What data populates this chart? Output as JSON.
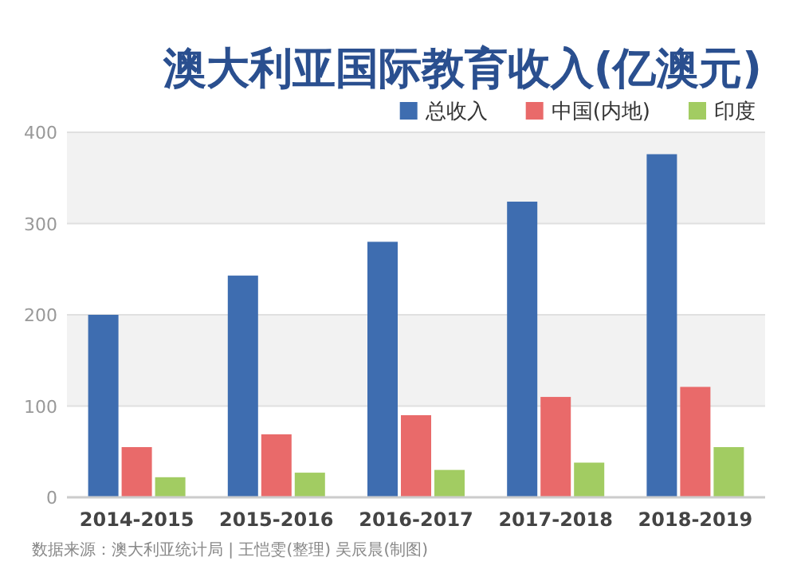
{
  "chart_data": {
    "type": "bar",
    "title": "澳大利亚国际教育收入(亿澳元)",
    "categories": [
      "2014-2015",
      "2015-2016",
      "2016-2017",
      "2017-2018",
      "2018-2019"
    ],
    "series": [
      {
        "name": "总收入",
        "color": "#3e6db0",
        "values": [
          200,
          243,
          280,
          324,
          376
        ]
      },
      {
        "name": "中国(内地)",
        "color": "#e96a6a",
        "values": [
          55,
          69,
          90,
          110,
          121
        ]
      },
      {
        "name": "印度",
        "color": "#a2cc62",
        "values": [
          22,
          27,
          30,
          38,
          55
        ]
      }
    ],
    "ylim": [
      0,
      400
    ],
    "yticks": [
      0,
      100,
      200,
      300,
      400
    ],
    "grid": "y",
    "legend": "top right",
    "annotations": [
      "数据来源：澳大利亚统计局 | 王恺雯(整理) 吴辰晨(制图)"
    ]
  }
}
